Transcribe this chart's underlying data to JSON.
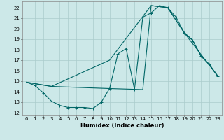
{
  "xlabel": "Humidex (Indice chaleur)",
  "bg_color": "#cce8e8",
  "line_color": "#006666",
  "grid_color": "#aacccc",
  "xlim": [
    -0.5,
    23.5
  ],
  "ylim": [
    11.8,
    22.6
  ],
  "yticks": [
    12,
    13,
    14,
    15,
    16,
    17,
    18,
    19,
    20,
    21,
    22
  ],
  "xticks": [
    0,
    1,
    2,
    3,
    4,
    5,
    6,
    7,
    8,
    9,
    10,
    11,
    12,
    13,
    14,
    15,
    16,
    17,
    18,
    19,
    20,
    21,
    22,
    23
  ],
  "line1_x": [
    0,
    1,
    2,
    3,
    4,
    5,
    6,
    7,
    8,
    9,
    10,
    11,
    12,
    13,
    14,
    15,
    16,
    17,
    18,
    19,
    20,
    21,
    22,
    23
  ],
  "line1_y": [
    14.9,
    14.6,
    13.9,
    13.1,
    12.7,
    12.5,
    12.5,
    12.5,
    12.4,
    13.0,
    14.3,
    17.6,
    18.1,
    14.2,
    21.1,
    21.5,
    22.2,
    22.0,
    21.1,
    19.6,
    18.9,
    17.4,
    16.6,
    15.5
  ],
  "line2_x": [
    0,
    3,
    10,
    15,
    17,
    19,
    23
  ],
  "line2_y": [
    14.9,
    14.5,
    17.0,
    22.2,
    22.0,
    19.6,
    15.5
  ],
  "line3_x": [
    0,
    3,
    10,
    14,
    15,
    17,
    19,
    20,
    21,
    22,
    23
  ],
  "line3_y": [
    14.9,
    14.5,
    14.3,
    14.2,
    22.2,
    22.0,
    19.6,
    18.9,
    17.4,
    16.6,
    15.5
  ]
}
